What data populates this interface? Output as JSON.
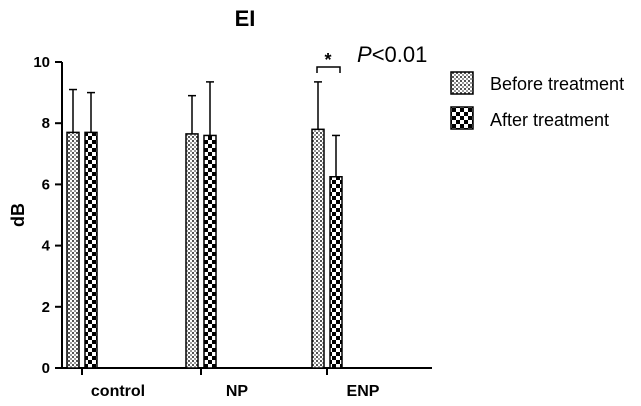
{
  "chart_data": {
    "type": "bar",
    "title": "EI",
    "xlabel": "",
    "ylabel": "dB",
    "ylim": [
      0,
      10
    ],
    "yticks": [
      "0",
      "2",
      "4",
      "6",
      "8",
      "10"
    ],
    "categories": [
      "control",
      "NP",
      "ENP"
    ],
    "series": [
      {
        "name": "Before treatment",
        "values": [
          7.7,
          7.65,
          7.8
        ],
        "errors": [
          1.4,
          1.25,
          1.55
        ],
        "pattern": "dots"
      },
      {
        "name": "After treatment",
        "values": [
          7.7,
          7.6,
          6.25
        ],
        "errors": [
          1.3,
          1.75,
          1.35
        ],
        "pattern": "checker"
      }
    ],
    "annotation": {
      "star": "*",
      "p_letter": "P",
      "p_rest": "<0.01"
    },
    "legend_position": "right",
    "grid": false
  }
}
